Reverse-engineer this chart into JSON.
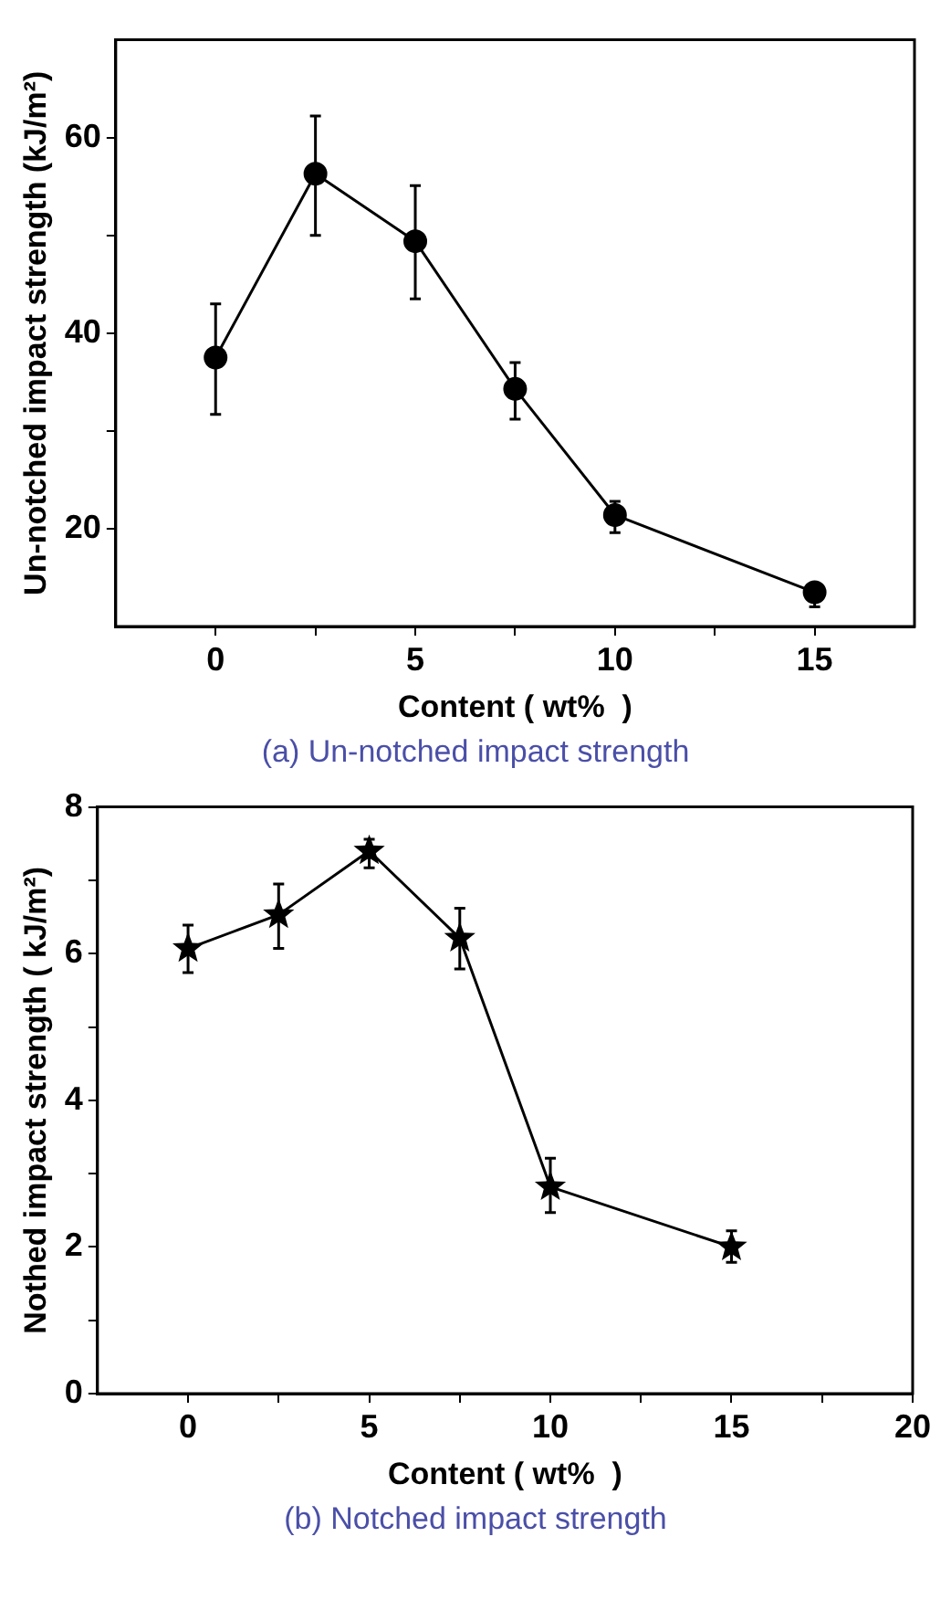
{
  "chart_data": [
    {
      "type": "line",
      "xlabel": "Content ( wt%  )",
      "ylabel": "Un-notched impact strength (kJ/m²)",
      "annotations": [
        "(a) Un-notched impact strength"
      ],
      "marker": "circle",
      "line_style": "solid",
      "color": "#000000",
      "x": [
        0,
        2.5,
        5,
        7.5,
        10,
        15
      ],
      "values": [
        37.5,
        56.3,
        49.4,
        34.3,
        21.4,
        13.5
      ],
      "errors": [
        [
          31.7,
          43.0
        ],
        [
          50.0,
          62.2
        ],
        [
          43.5,
          55.1
        ],
        [
          31.2,
          37.0
        ],
        [
          19.6,
          22.8
        ],
        [
          12.0,
          14.3
        ]
      ],
      "xlim": [
        -2.5,
        17.5
      ],
      "xticks": [
        0,
        {
          "value": 2.5,
          "label": null
        },
        5,
        {
          "value": 7.5,
          "label": null
        },
        10,
        {
          "value": 12.5,
          "label": null
        },
        15
      ],
      "ylim": [
        10,
        70
      ],
      "yticks": [
        20,
        {
          "value": 30,
          "label": null
        },
        40,
        {
          "value": 50,
          "label": null
        },
        60
      ],
      "grid": false
    },
    {
      "type": "line",
      "xlabel": "Content ( wt%  )",
      "ylabel": "Nothed impact strength ( kJ/m²)",
      "annotations": [
        "(b) Notched impact strength"
      ],
      "marker": "star",
      "line_style": "solid",
      "color": "#000000",
      "x": [
        0,
        2.5,
        5,
        7.5,
        10,
        15
      ],
      "values": [
        6.07,
        6.53,
        7.4,
        6.21,
        2.82,
        2.0
      ],
      "errors": [
        [
          5.74,
          6.39
        ],
        [
          6.07,
          6.95
        ],
        [
          7.17,
          7.56
        ],
        [
          5.79,
          6.62
        ],
        [
          2.47,
          3.21
        ],
        [
          1.79,
          2.22
        ]
      ],
      "xlim": [
        -2.5,
        20
      ],
      "xticks": [
        0,
        {
          "value": 2.5,
          "label": null
        },
        5,
        {
          "value": 7.5,
          "label": null
        },
        10,
        {
          "value": 12.5,
          "label": null
        },
        15,
        {
          "value": 17.5,
          "label": null
        },
        20
      ],
      "ylim": [
        0,
        8
      ],
      "yticks": [
        0,
        {
          "value": 1,
          "label": null
        },
        2,
        {
          "value": 3,
          "label": null
        },
        4,
        {
          "value": 5,
          "label": null
        },
        6,
        {
          "value": 7,
          "label": null
        },
        8
      ],
      "grid": false
    }
  ]
}
